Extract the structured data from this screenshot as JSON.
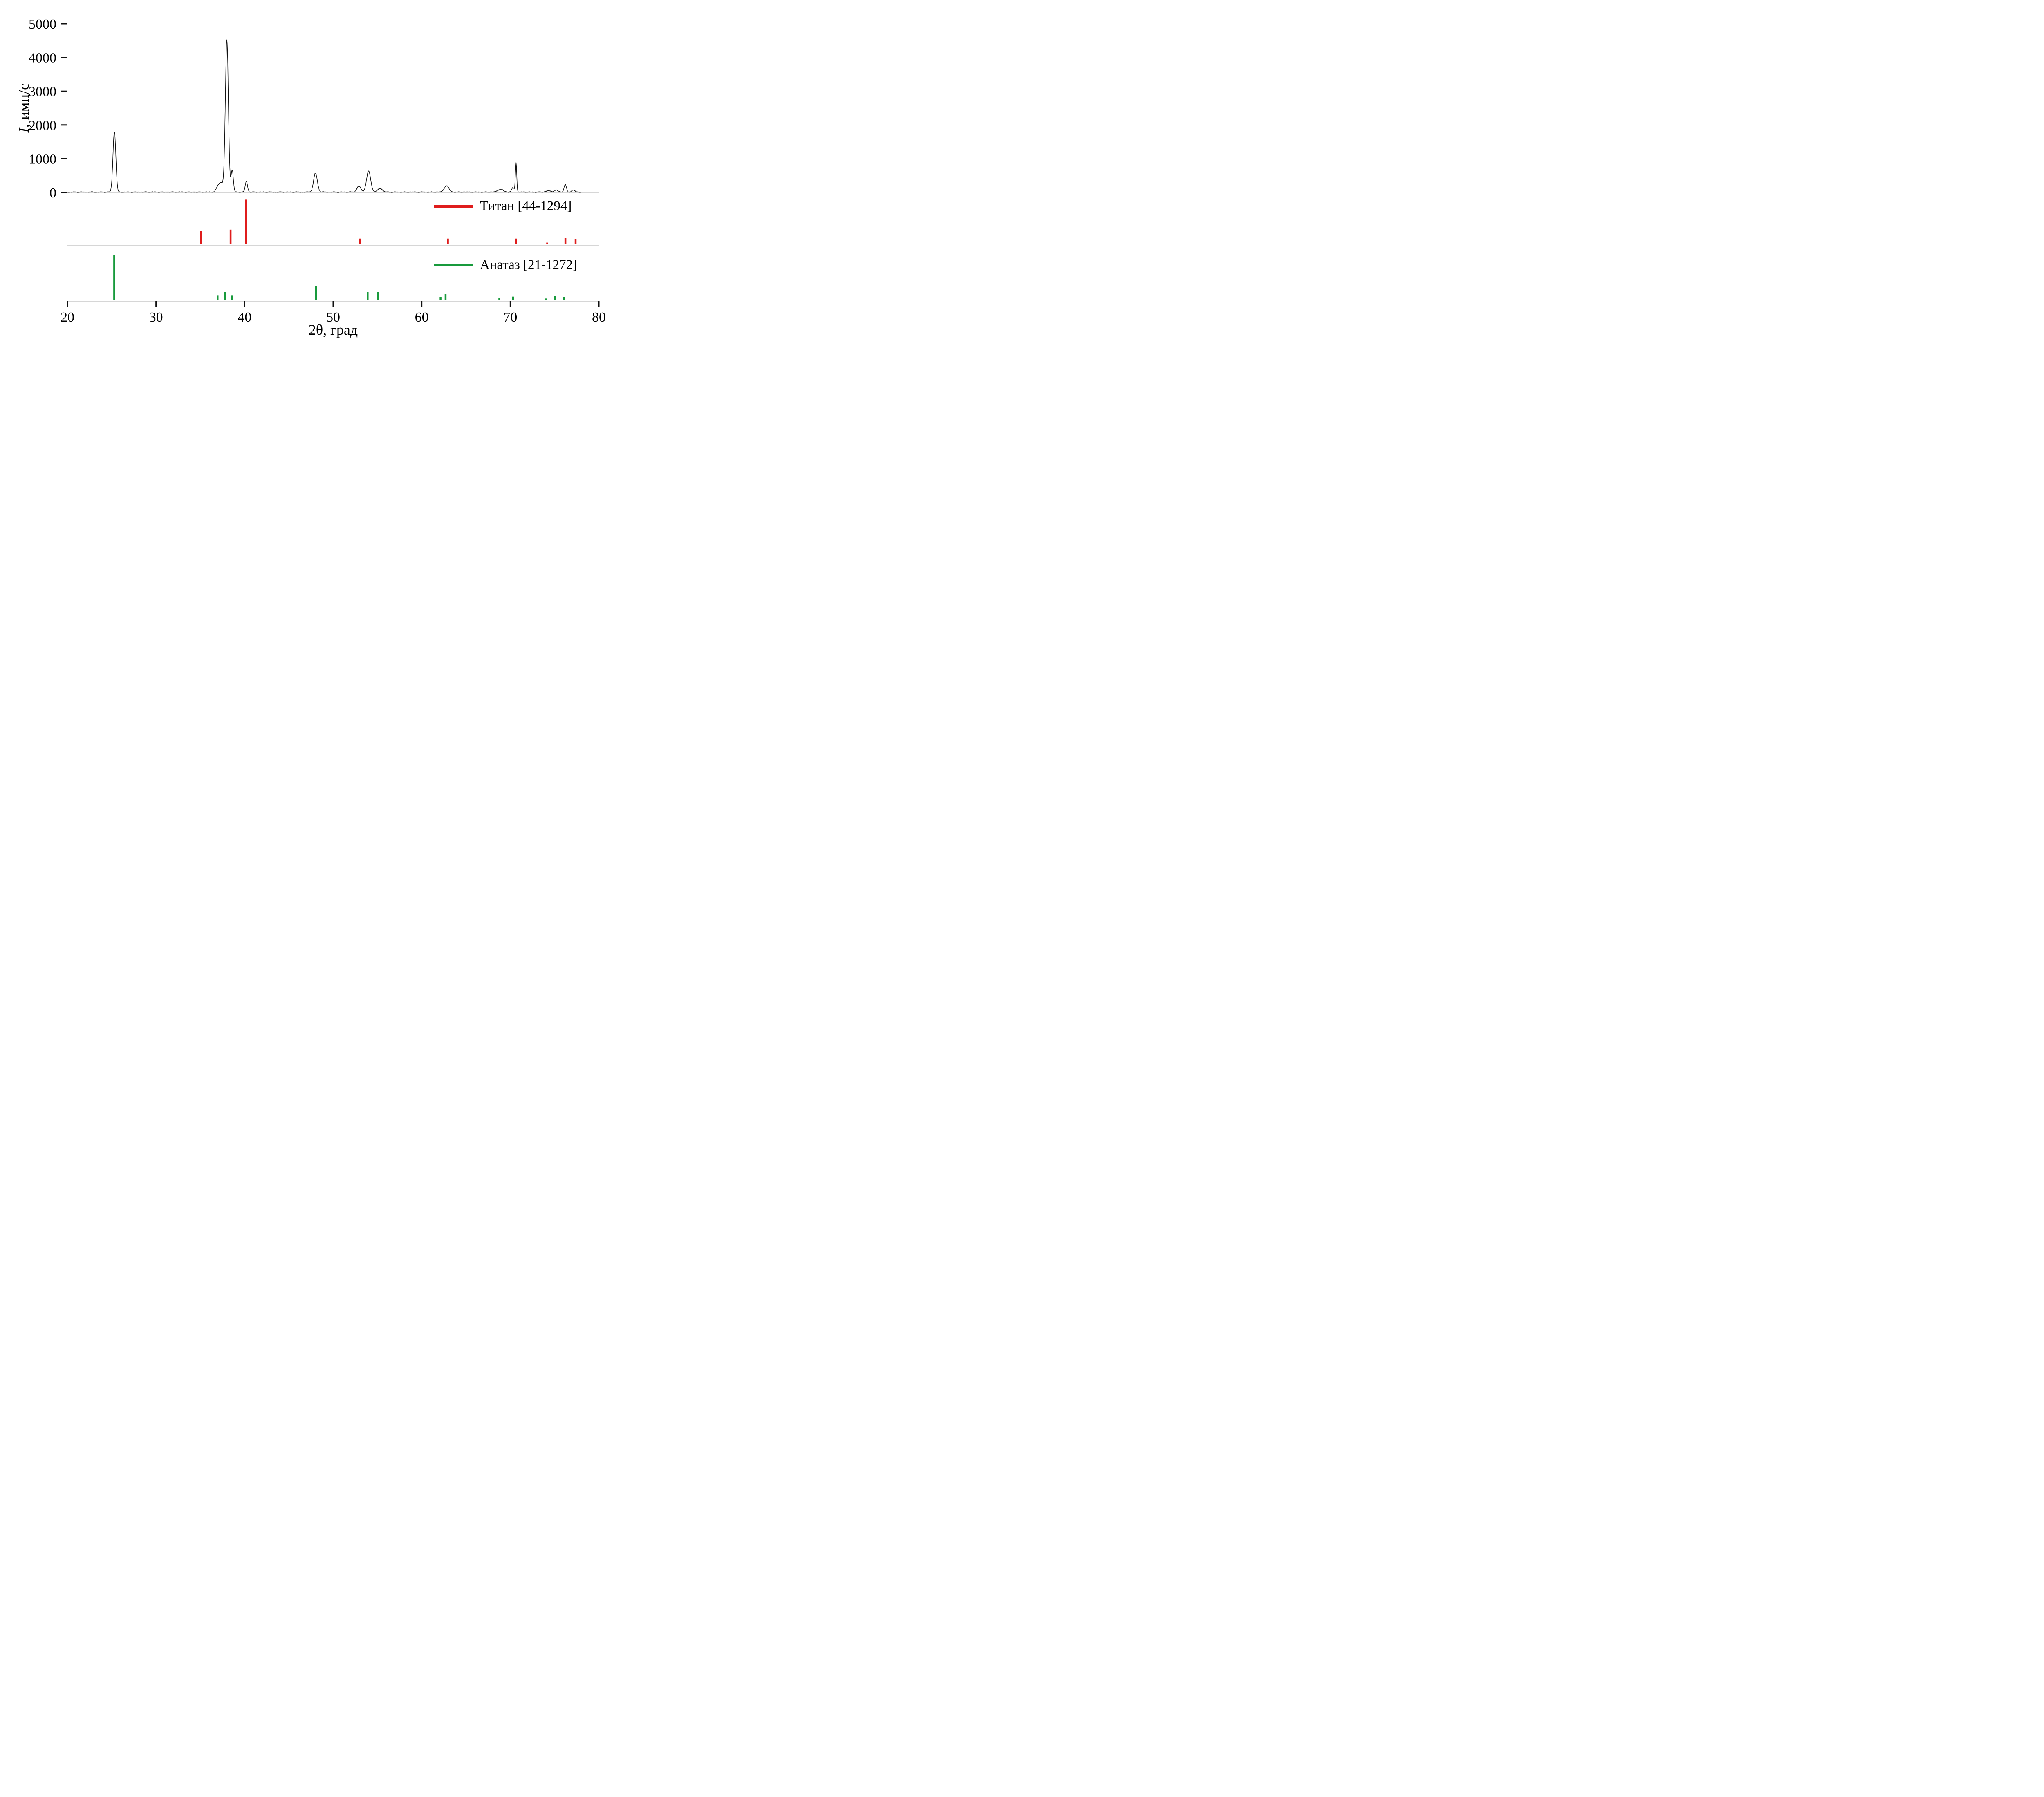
{
  "chart_data": {
    "type": "line",
    "subtype": "xrd-diffraction-pattern",
    "title": "",
    "xlabel": "2θ, град",
    "ylabel": "I, имп/с",
    "ylabel_italic": "I",
    "ylabel_rest": ", имп/с",
    "xlim": [
      20,
      80
    ],
    "ylim": [
      0,
      5000
    ],
    "x_ticks": [
      20,
      30,
      40,
      50,
      60,
      70,
      80
    ],
    "y_ticks": [
      0,
      1000,
      2000,
      3000,
      4000,
      5000
    ],
    "grid": false,
    "legend_position": "right-inside-bands",
    "pattern": {
      "name": "experimental-xrd-pattern",
      "color": "#111111",
      "x_range": [
        19.9,
        78.0
      ],
      "baseline": 12,
      "noise_amplitude": 12,
      "peaks": [
        {
          "two_theta": 25.3,
          "intensity": 1800,
          "fwhm": 0.38
        },
        {
          "two_theta": 37.0,
          "intensity": 150,
          "fwhm": 0.5
        },
        {
          "two_theta": 37.4,
          "intensity": 250,
          "fwhm": 0.55
        },
        {
          "two_theta": 38.0,
          "intensity": 4500,
          "fwhm": 0.4
        },
        {
          "two_theta": 38.6,
          "intensity": 650,
          "fwhm": 0.3
        },
        {
          "two_theta": 40.2,
          "intensity": 320,
          "fwhm": 0.3
        },
        {
          "two_theta": 48.0,
          "intensity": 560,
          "fwhm": 0.5
        },
        {
          "two_theta": 52.9,
          "intensity": 180,
          "fwhm": 0.5
        },
        {
          "two_theta": 54.0,
          "intensity": 620,
          "fwhm": 0.55
        },
        {
          "two_theta": 55.3,
          "intensity": 110,
          "fwhm": 0.6
        },
        {
          "two_theta": 62.8,
          "intensity": 190,
          "fwhm": 0.6
        },
        {
          "two_theta": 68.9,
          "intensity": 85,
          "fwhm": 0.7
        },
        {
          "two_theta": 70.3,
          "intensity": 130,
          "fwhm": 0.35
        },
        {
          "two_theta": 70.65,
          "intensity": 860,
          "fwhm": 0.18
        },
        {
          "two_theta": 74.3,
          "intensity": 40,
          "fwhm": 0.6
        },
        {
          "two_theta": 75.2,
          "intensity": 55,
          "fwhm": 0.5
        },
        {
          "two_theta": 76.2,
          "intensity": 230,
          "fwhm": 0.3
        },
        {
          "two_theta": 77.1,
          "intensity": 60,
          "fwhm": 0.4
        }
      ]
    },
    "reference_patterns": [
      {
        "name": "Титан",
        "card": "44-1294",
        "label": "Титан [44-1294]",
        "color": "#df1c1c",
        "peaks": [
          {
            "two_theta": 35.09,
            "rel_intensity": 30
          },
          {
            "two_theta": 38.42,
            "rel_intensity": 33
          },
          {
            "two_theta": 40.17,
            "rel_intensity": 100
          },
          {
            "two_theta": 53.0,
            "rel_intensity": 13
          },
          {
            "two_theta": 62.95,
            "rel_intensity": 13
          },
          {
            "two_theta": 70.66,
            "rel_intensity": 13
          },
          {
            "two_theta": 74.16,
            "rel_intensity": 4
          },
          {
            "two_theta": 76.22,
            "rel_intensity": 14
          },
          {
            "two_theta": 77.37,
            "rel_intensity": 11
          }
        ]
      },
      {
        "name": "Анатаз",
        "card": "21-1272",
        "label": "Анатаз [21-1272]",
        "color": "#189a3c",
        "peaks": [
          {
            "two_theta": 25.28,
            "rel_intensity": 95
          },
          {
            "two_theta": 36.95,
            "rel_intensity": 10
          },
          {
            "two_theta": 37.8,
            "rel_intensity": 18
          },
          {
            "two_theta": 38.58,
            "rel_intensity": 10
          },
          {
            "two_theta": 48.05,
            "rel_intensity": 30
          },
          {
            "two_theta": 53.89,
            "rel_intensity": 18
          },
          {
            "two_theta": 55.06,
            "rel_intensity": 18
          },
          {
            "two_theta": 62.12,
            "rel_intensity": 7
          },
          {
            "two_theta": 62.69,
            "rel_intensity": 13
          },
          {
            "two_theta": 68.76,
            "rel_intensity": 6
          },
          {
            "two_theta": 70.31,
            "rel_intensity": 8
          },
          {
            "two_theta": 74.03,
            "rel_intensity": 4
          },
          {
            "two_theta": 75.03,
            "rel_intensity": 9
          },
          {
            "two_theta": 76.02,
            "rel_intensity": 7
          }
        ]
      }
    ]
  }
}
